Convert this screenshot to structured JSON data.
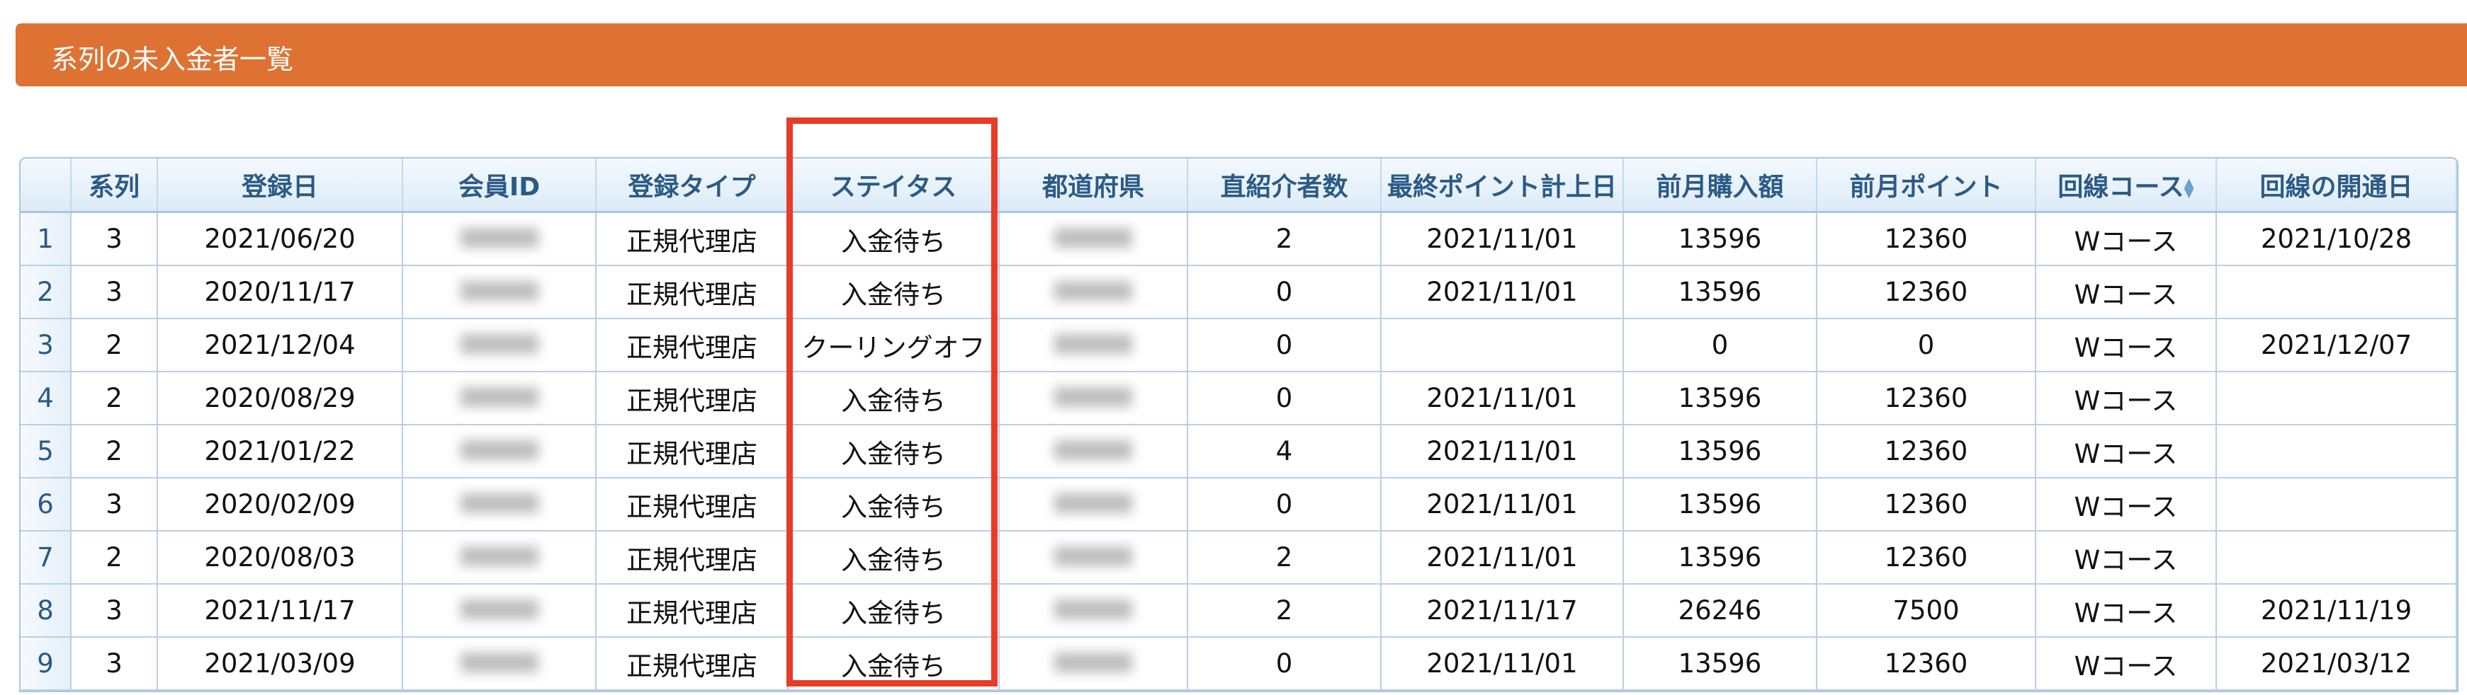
{
  "title": "系列の未入金者一覧",
  "columns": [
    "",
    "系列",
    "登録日",
    "会員ID",
    "登録タイプ",
    "ステイタス",
    "都道府県",
    "直紹介者数",
    "最終ポイント計上日",
    "前月購入額",
    "前月ポイント",
    "回線コース",
    "回線の開通日"
  ],
  "sorted_column": "回線コース",
  "highlight_color": "#e63c28",
  "header_color": "#de7232",
  "rows": [
    {
      "n": "1",
      "series": "3",
      "reg_date": "2021/06/20",
      "type": "正規代理店",
      "status": "入金待ち",
      "referrals": "2",
      "last_point": "2021/11/01",
      "purchase": "13596",
      "points": "12360",
      "course": "Wコース",
      "open_date": "2021/10/28"
    },
    {
      "n": "2",
      "series": "3",
      "reg_date": "2020/11/17",
      "type": "正規代理店",
      "status": "入金待ち",
      "referrals": "0",
      "last_point": "2021/11/01",
      "purchase": "13596",
      "points": "12360",
      "course": "Wコース",
      "open_date": ""
    },
    {
      "n": "3",
      "series": "2",
      "reg_date": "2021/12/04",
      "type": "正規代理店",
      "status": "クーリングオフ",
      "referrals": "0",
      "last_point": "",
      "purchase": "0",
      "points": "0",
      "course": "Wコース",
      "open_date": "2021/12/07"
    },
    {
      "n": "4",
      "series": "2",
      "reg_date": "2020/08/29",
      "type": "正規代理店",
      "status": "入金待ち",
      "referrals": "0",
      "last_point": "2021/11/01",
      "purchase": "13596",
      "points": "12360",
      "course": "Wコース",
      "open_date": ""
    },
    {
      "n": "5",
      "series": "2",
      "reg_date": "2021/01/22",
      "type": "正規代理店",
      "status": "入金待ち",
      "referrals": "4",
      "last_point": "2021/11/01",
      "purchase": "13596",
      "points": "12360",
      "course": "Wコース",
      "open_date": ""
    },
    {
      "n": "6",
      "series": "3",
      "reg_date": "2020/02/09",
      "type": "正規代理店",
      "status": "入金待ち",
      "referrals": "0",
      "last_point": "2021/11/01",
      "purchase": "13596",
      "points": "12360",
      "course": "Wコース",
      "open_date": ""
    },
    {
      "n": "7",
      "series": "2",
      "reg_date": "2020/08/03",
      "type": "正規代理店",
      "status": "入金待ち",
      "referrals": "2",
      "last_point": "2021/11/01",
      "purchase": "13596",
      "points": "12360",
      "course": "Wコース",
      "open_date": ""
    },
    {
      "n": "8",
      "series": "3",
      "reg_date": "2021/11/17",
      "type": "正規代理店",
      "status": "入金待ち",
      "referrals": "2",
      "last_point": "2021/11/17",
      "purchase": "26246",
      "points": "7500",
      "course": "Wコース",
      "open_date": "2021/11/19"
    },
    {
      "n": "9",
      "series": "3",
      "reg_date": "2021/03/09",
      "type": "正規代理店",
      "status": "入金待ち",
      "referrals": "0",
      "last_point": "2021/11/01",
      "purchase": "13596",
      "points": "12360",
      "course": "Wコース",
      "open_date": "2021/03/12"
    }
  ]
}
